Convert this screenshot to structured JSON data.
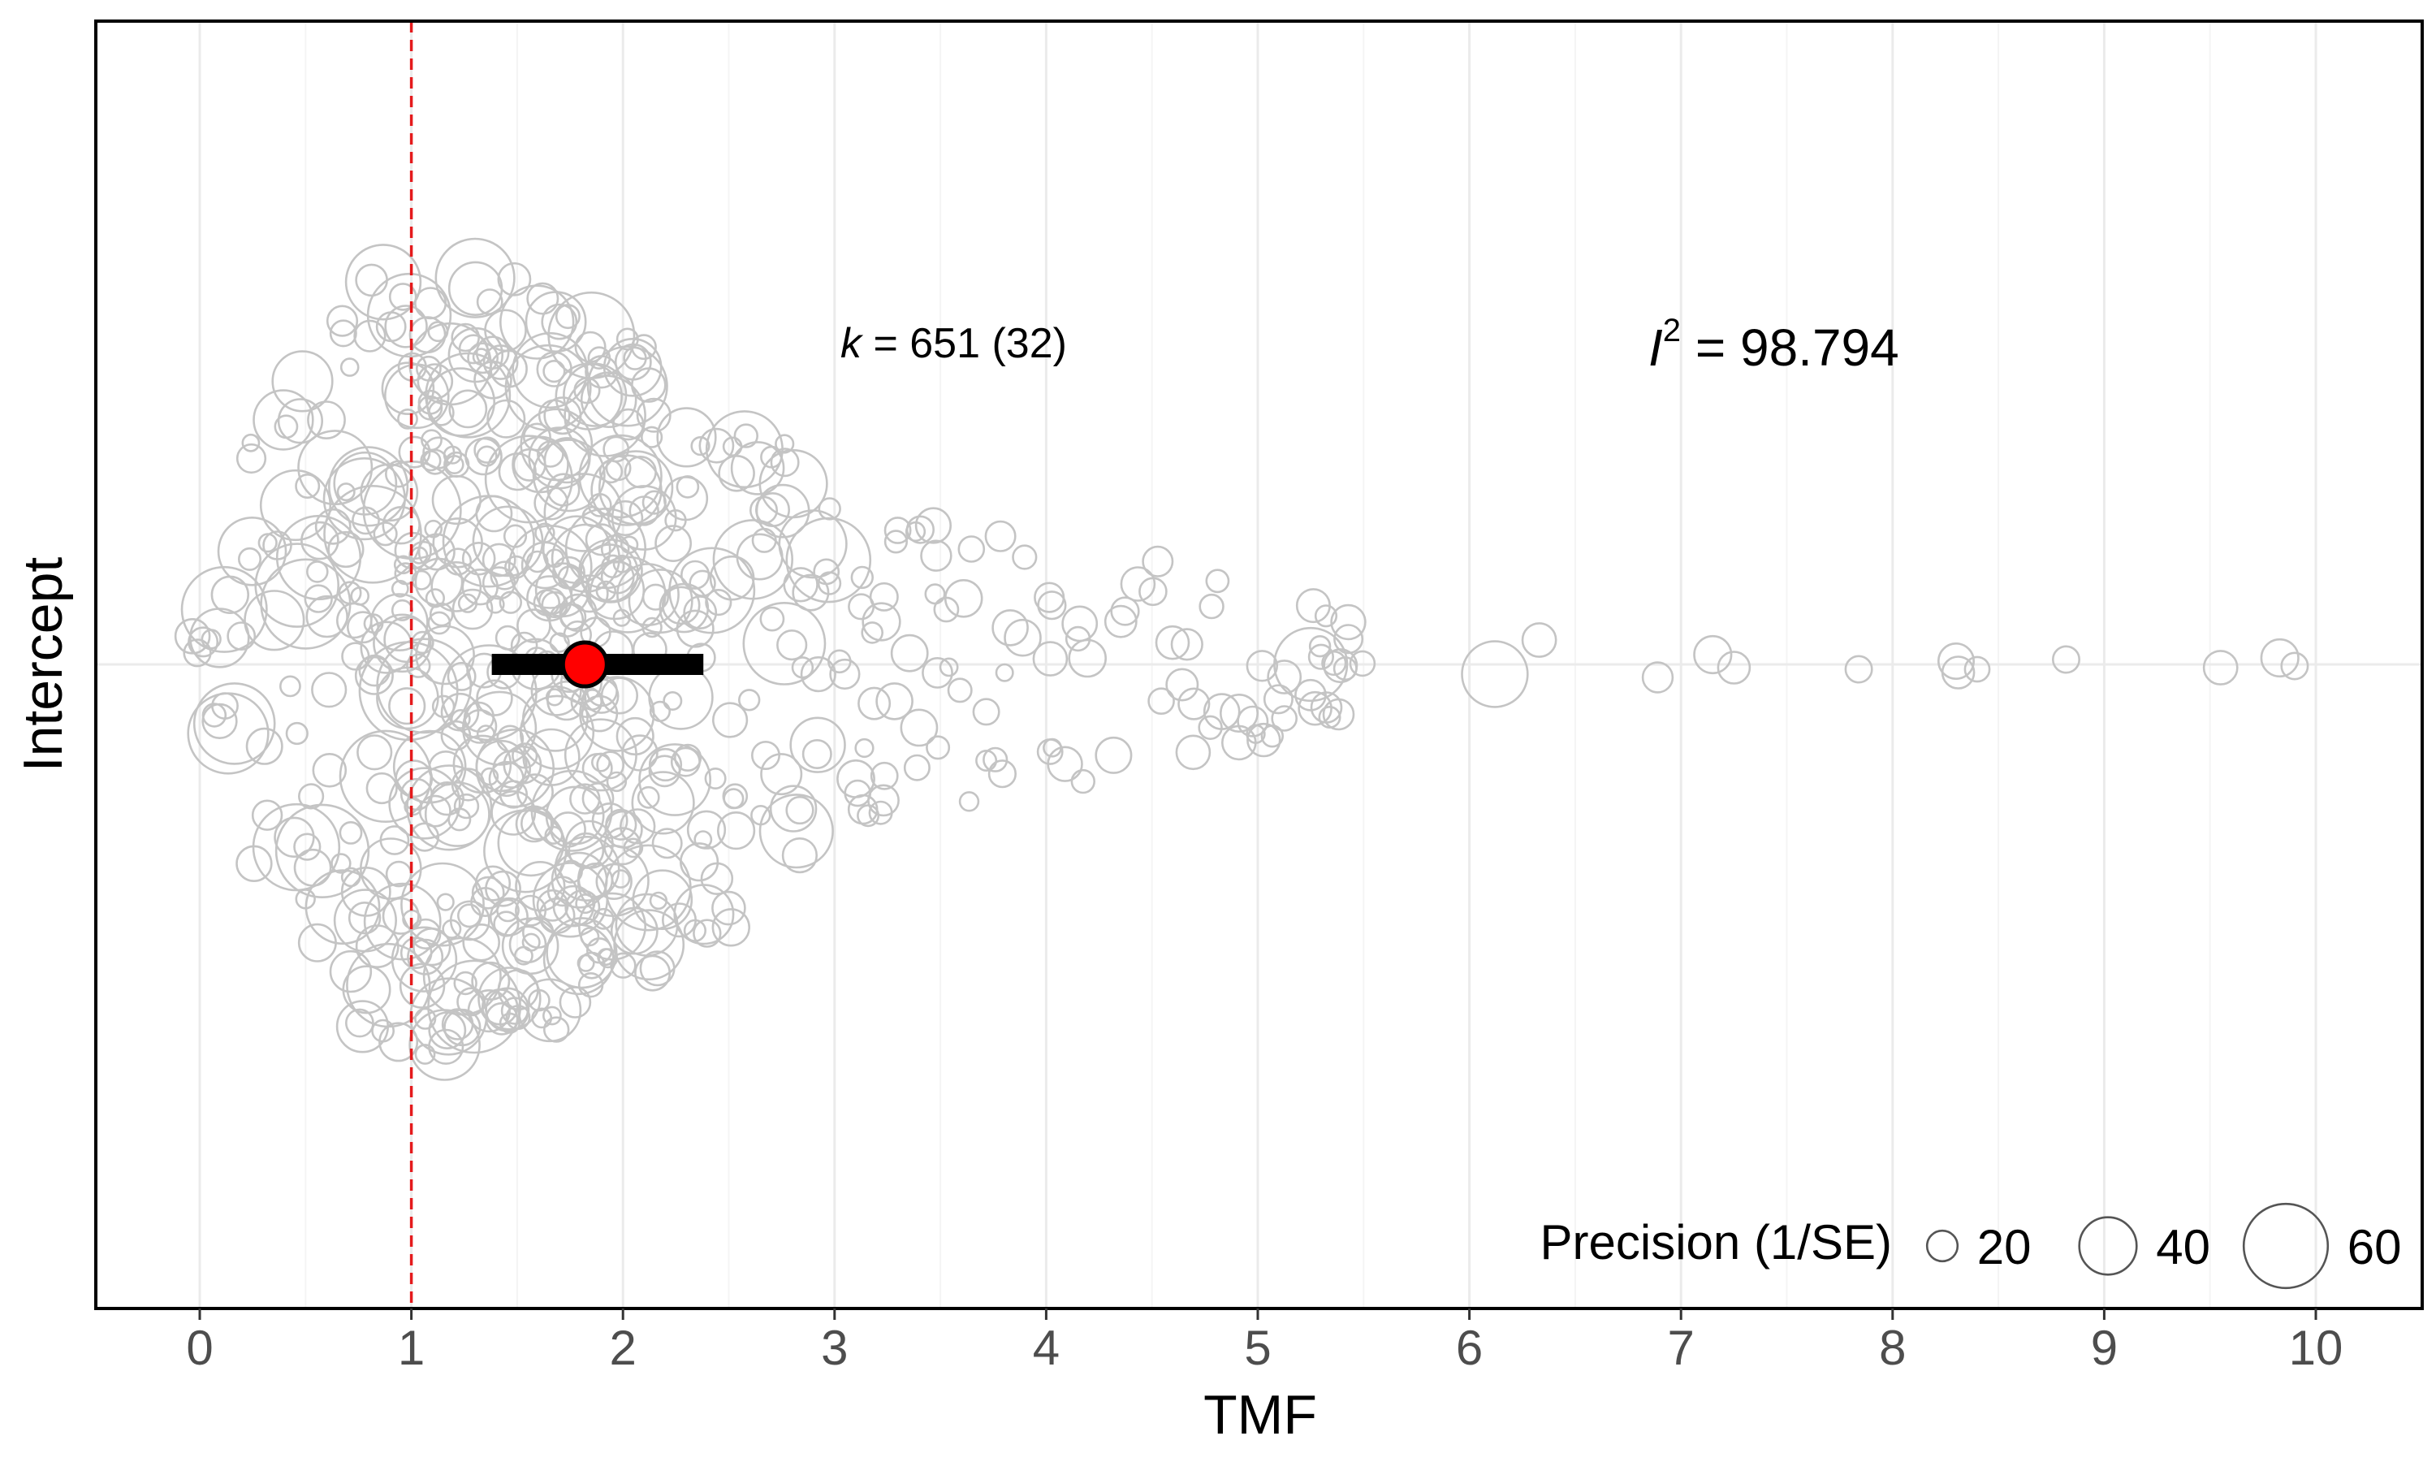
{
  "chart_data": {
    "type": "scatter",
    "subtype": "orchard-plot",
    "xlabel": "TMF",
    "ylabel": "Intercept",
    "xlim": [
      -0.5,
      10.5
    ],
    "x_ticks": [
      0,
      1,
      2,
      3,
      4,
      5,
      6,
      7,
      8,
      9,
      10
    ],
    "y_categories": [
      "Intercept"
    ],
    "grid": true,
    "reference_line": {
      "x": 1,
      "color": "#e41a1c",
      "style": "dashed"
    },
    "estimate": {
      "x": 1.82,
      "ci": [
        1.38,
        2.38
      ],
      "color": "#ff0000"
    },
    "annotations": {
      "k_symbol": "k",
      "k_text": " = 651 (32)",
      "i2_symbol": "I",
      "i2_sup": "2",
      "i2_text": " = 98.794"
    },
    "legend": {
      "title": "Precision (1/SE)",
      "position": "bottom-right",
      "items": [
        {
          "label": "20",
          "value": 20
        },
        {
          "label": "40",
          "value": 40
        },
        {
          "label": "60",
          "value": 60
        }
      ]
    },
    "series": [
      {
        "n": 651,
        "point_color": "#c4c4c4",
        "extreme_points": [
          {
            "x": 5.25,
            "precision": 38
          },
          {
            "x": 6.12,
            "precision": 34
          },
          {
            "x": 6.33,
            "precision": 16
          },
          {
            "x": 6.89,
            "precision": 14
          },
          {
            "x": 7.15,
            "precision": 18
          },
          {
            "x": 7.25,
            "precision": 15
          },
          {
            "x": 7.84,
            "precision": 12
          },
          {
            "x": 8.3,
            "precision": 17
          },
          {
            "x": 8.31,
            "precision": 15
          },
          {
            "x": 8.4,
            "precision": 11
          },
          {
            "x": 8.82,
            "precision": 12
          },
          {
            "x": 9.55,
            "precision": 16
          },
          {
            "x": 9.83,
            "precision": 18
          },
          {
            "x": 9.9,
            "precision": 12
          }
        ]
      }
    ]
  }
}
